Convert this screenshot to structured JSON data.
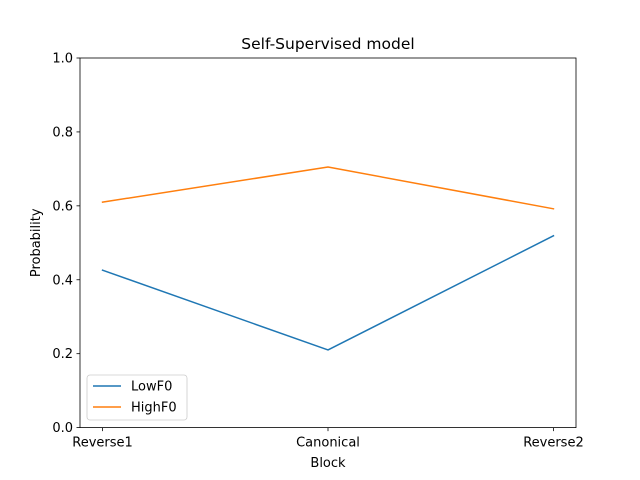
{
  "chart_data": {
    "type": "line",
    "title": "Self-Supervised model",
    "xlabel": "Block",
    "ylabel": "Probability",
    "categories": [
      "Reverse1",
      "Canonical",
      "Reverse2"
    ],
    "ylim": [
      0.0,
      1.0
    ],
    "yticks": [
      "0.0",
      "0.2",
      "0.4",
      "0.6",
      "0.8",
      "1.0"
    ],
    "grid": false,
    "legend_position": "lower-left",
    "series": [
      {
        "name": "LowF0",
        "color": "#1f77b4",
        "values": [
          0.426,
          0.21,
          0.519
        ]
      },
      {
        "name": "HighF0",
        "color": "#ff7f0e",
        "values": [
          0.61,
          0.705,
          0.592
        ]
      }
    ]
  }
}
